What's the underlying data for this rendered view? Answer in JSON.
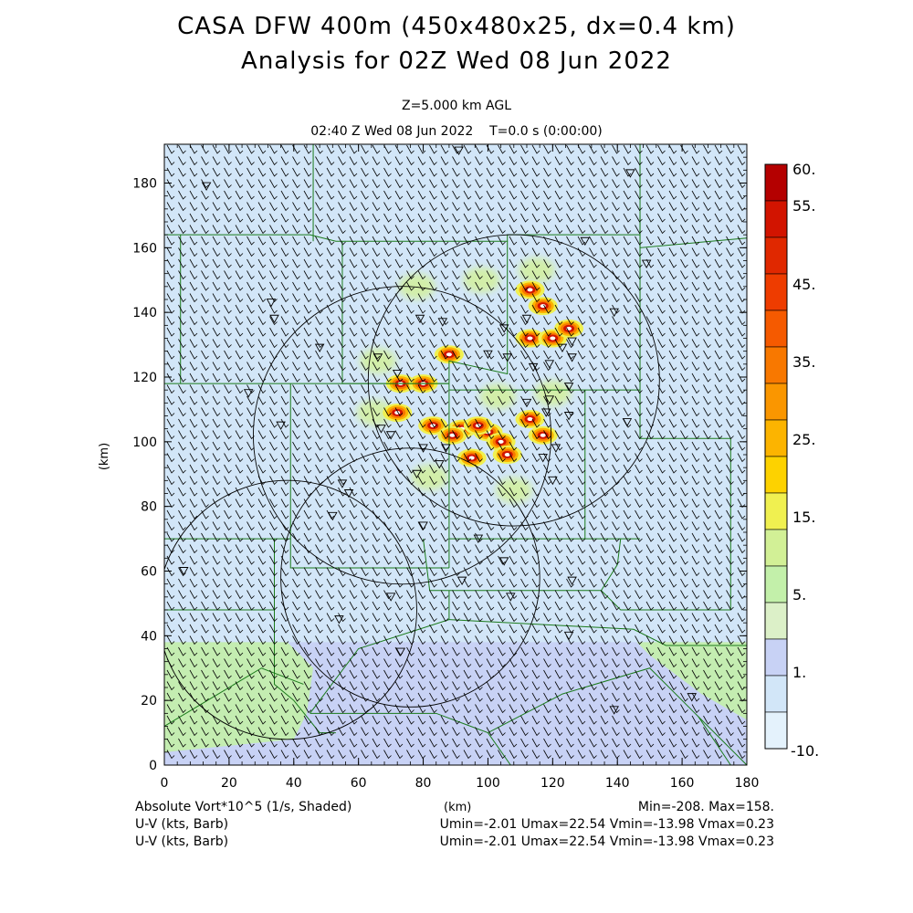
{
  "header": {
    "title_line1": "CASA DFW 400m (450x480x25, dx=0.4 km)",
    "title_line2": "Analysis for 02Z Wed 08 Jun 2022",
    "level": "Z=5.000 km AGL",
    "time": "02:40 Z Wed 08 Jun 2022    T=0.0 s (0:00:00)"
  },
  "footer": {
    "field_label": "Absolute Vort*10^5 (1/s, Shaded)",
    "x_unit": "(km)",
    "minmax": "Min=-208. Max=158.",
    "wind1_label": "U-V (kts, Barb)",
    "wind1_stats": "Umin=-2.01 Umax=22.54 Vmin=-13.98 Vmax=0.23",
    "wind2_label": "U-V (kts, Barb)",
    "wind2_stats": "Umin=-2.01 Umax=22.54 Vmin=-13.98 Vmax=0.23"
  },
  "chart_data": {
    "type": "heatmap",
    "xlabel": "(km)",
    "ylabel": "(km)",
    "xlim": [
      0,
      180
    ],
    "ylim": [
      0,
      192
    ],
    "x_ticks": [
      0,
      20,
      40,
      60,
      80,
      100,
      120,
      140,
      160,
      180
    ],
    "y_ticks": [
      0,
      20,
      40,
      60,
      80,
      100,
      120,
      140,
      160,
      180
    ],
    "colorbar": {
      "labels": [
        "60.",
        "55.",
        "45.",
        "35.",
        "25.",
        "15.",
        "5.",
        "1.",
        "-10."
      ],
      "colors": [
        "#b40000",
        "#d21400",
        "#e02800",
        "#ee3c00",
        "#f55a00",
        "#f87800",
        "#fa9600",
        "#fcb400",
        "#fdd200",
        "#f0f050",
        "#d2f096",
        "#c3f0aa",
        "#dcf0c8",
        "#c8d2f5",
        "#d2e6f8",
        "#e4f2fc"
      ]
    },
    "radar_rings": [
      {
        "center_km": [
          73.5,
          102
        ],
        "radius_km": 46
      },
      {
        "center_km": [
          108,
          119
        ],
        "radius_km": 45
      },
      {
        "center_km": [
          38,
          48
        ],
        "radius_km": 40
      },
      {
        "center_km": [
          76,
          58
        ],
        "radius_km": 40
      }
    ],
    "vorticity_cores_km": [
      [
        73,
        118
      ],
      [
        80,
        118
      ],
      [
        88,
        127
      ],
      [
        72,
        109
      ],
      [
        83,
        105
      ],
      [
        92,
        104
      ],
      [
        100,
        103
      ],
      [
        104,
        100
      ],
      [
        95,
        95
      ],
      [
        113,
        107
      ],
      [
        117,
        102
      ],
      [
        113,
        132
      ],
      [
        120,
        132
      ],
      [
        113,
        147
      ],
      [
        117,
        142
      ],
      [
        125,
        135
      ],
      [
        97,
        105
      ],
      [
        106,
        96
      ],
      [
        89,
        102
      ]
    ],
    "weak_positive_areas_km": [
      [
        65,
        109
      ],
      [
        103,
        114
      ],
      [
        66,
        125
      ],
      [
        82,
        89
      ],
      [
        108,
        85
      ],
      [
        78,
        148
      ],
      [
        98,
        150
      ],
      [
        115,
        153
      ],
      [
        120,
        115
      ]
    ],
    "low_region_blue": "south half of lower panel (y < 38 km)",
    "stations_km": [
      [
        13,
        179
      ],
      [
        33,
        143
      ],
      [
        34,
        138
      ],
      [
        48,
        129
      ],
      [
        26,
        115
      ],
      [
        36,
        105
      ],
      [
        66,
        126
      ],
      [
        72,
        121
      ],
      [
        79,
        138
      ],
      [
        86,
        137
      ],
      [
        67,
        104
      ],
      [
        70,
        102
      ],
      [
        80,
        98
      ],
      [
        87,
        98
      ],
      [
        85,
        93
      ],
      [
        78,
        90
      ],
      [
        55,
        87
      ],
      [
        57,
        84
      ],
      [
        52,
        77
      ],
      [
        80,
        74
      ],
      [
        97,
        70
      ],
      [
        105,
        63
      ],
      [
        126,
        57
      ],
      [
        92,
        57
      ],
      [
        107,
        52
      ],
      [
        70,
        52
      ],
      [
        54,
        45
      ],
      [
        125,
        40
      ],
      [
        73,
        35
      ],
      [
        139,
        17
      ],
      [
        163,
        21
      ],
      [
        6,
        60
      ],
      [
        125,
        117
      ],
      [
        119,
        113
      ],
      [
        118,
        109
      ],
      [
        112,
        112
      ],
      [
        125,
        108
      ],
      [
        121,
        98
      ],
      [
        120,
        88
      ],
      [
        117,
        95
      ],
      [
        143,
        106
      ],
      [
        139,
        140
      ],
      [
        144,
        183
      ],
      [
        130,
        162
      ],
      [
        149,
        155
      ],
      [
        91,
        190
      ],
      [
        126,
        126
      ],
      [
        126,
        131
      ],
      [
        123,
        129
      ],
      [
        119,
        124
      ],
      [
        114,
        123
      ],
      [
        112,
        138
      ],
      [
        105,
        135
      ],
      [
        100,
        127
      ],
      [
        106,
        126
      ]
    ],
    "county_lines_km": [
      [
        [
          46,
          192
        ],
        [
          46,
          162
        ]
      ],
      [
        [
          147,
          192
        ],
        [
          147,
          160
        ],
        [
          180,
          163
        ]
      ],
      [
        [
          0,
          164
        ],
        [
          45,
          164
        ],
        [
          53,
          162
        ],
        [
          106,
          162
        ],
        [
          106,
          164
        ],
        [
          147,
          164
        ]
      ],
      [
        [
          5,
          164
        ],
        [
          5,
          118
        ]
      ],
      [
        [
          55,
          162
        ],
        [
          55,
          118
        ],
        [
          88,
          118
        ]
      ],
      [
        [
          0,
          118
        ],
        [
          88,
          118
        ]
      ],
      [
        [
          88,
          118
        ],
        [
          88,
          125
        ],
        [
          106,
          121
        ],
        [
          106,
          162
        ]
      ],
      [
        [
          39,
          118
        ],
        [
          39,
          70
        ],
        [
          0,
          70
        ]
      ],
      [
        [
          39,
          70
        ],
        [
          39,
          61
        ],
        [
          88,
          61
        ]
      ],
      [
        [
          88,
          118
        ],
        [
          88,
          61
        ]
      ],
      [
        [
          88,
          116
        ],
        [
          147,
          116
        ],
        [
          147,
          101
        ],
        [
          175,
          101
        ]
      ],
      [
        [
          130,
          116
        ],
        [
          130,
          70
        ],
        [
          147,
          70
        ]
      ],
      [
        [
          130,
          70
        ],
        [
          88,
          70
        ]
      ],
      [
        [
          175,
          101
        ],
        [
          175,
          48
        ]
      ],
      [
        [
          147,
          116
        ],
        [
          147,
          170
        ]
      ],
      [
        [
          0,
          48
        ],
        [
          34,
          48
        ],
        [
          34,
          25
        ],
        [
          40,
          20
        ],
        [
          48,
          10
        ],
        [
          53,
          10
        ]
      ],
      [
        [
          34,
          48
        ],
        [
          34,
          70
        ]
      ],
      [
        [
          80,
          70
        ],
        [
          82,
          54
        ],
        [
          88,
          54
        ]
      ],
      [
        [
          88,
          54
        ],
        [
          88,
          45
        ],
        [
          60,
          36
        ],
        [
          45,
          16
        ]
      ],
      [
        [
          88,
          54
        ],
        [
          135,
          54
        ],
        [
          141,
          48
        ],
        [
          175,
          48
        ]
      ],
      [
        [
          135,
          54
        ],
        [
          140,
          62
        ],
        [
          141,
          70
        ]
      ],
      [
        [
          88,
          45
        ],
        [
          145,
          42
        ],
        [
          155,
          37
        ],
        [
          180,
          37
        ]
      ],
      [
        [
          45,
          16
        ],
        [
          84,
          16
        ],
        [
          100,
          10
        ],
        [
          107,
          0
        ]
      ],
      [
        [
          100,
          10
        ],
        [
          123,
          22
        ],
        [
          150,
          30
        ],
        [
          165,
          15
        ],
        [
          175,
          0
        ]
      ],
      [
        [
          165,
          15
        ],
        [
          180,
          0
        ]
      ],
      [
        [
          0,
          12
        ],
        [
          30,
          30
        ],
        [
          43,
          25
        ]
      ]
    ]
  }
}
